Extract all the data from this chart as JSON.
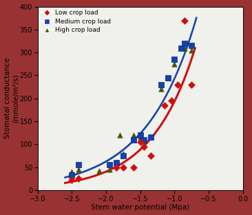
{
  "title": "",
  "xlabel": "Stem water potential (Mpa)",
  "ylabel": "Stomatal conductance\n(mmole/m²/s)",
  "xlim": [
    -3,
    0
  ],
  "ylim": [
    0,
    400
  ],
  "xticks": [
    -3,
    -2.5,
    -2,
    -1.5,
    -1,
    -0.5,
    0
  ],
  "yticks": [
    0,
    50,
    100,
    150,
    200,
    250,
    300,
    350,
    400
  ],
  "low_x": [
    -2.5,
    -2.4,
    -1.85,
    -1.75,
    -1.6,
    -1.5,
    -1.45,
    -1.35,
    -1.15,
    -1.05,
    -0.95,
    -0.85,
    -0.75
  ],
  "low_y": [
    22,
    25,
    50,
    50,
    50,
    105,
    95,
    75,
    185,
    195,
    230,
    370,
    230
  ],
  "med_x": [
    -2.5,
    -2.4,
    -1.95,
    -1.85,
    -1.75,
    -1.6,
    -1.5,
    -1.45,
    -1.35,
    -1.2,
    -1.1,
    -1.0,
    -0.9,
    -0.85,
    -0.75
  ],
  "med_y": [
    33,
    55,
    55,
    60,
    75,
    110,
    120,
    110,
    115,
    230,
    245,
    285,
    310,
    320,
    315
  ],
  "high_x": [
    -2.5,
    -2.4,
    -2.1,
    -1.95,
    -1.8,
    -1.75,
    -1.6,
    -1.5,
    -1.45,
    -1.2,
    -1.1,
    -1.0,
    -0.85,
    -0.75
  ],
  "high_y": [
    40,
    45,
    42,
    45,
    120,
    80,
    120,
    115,
    100,
    220,
    245,
    275,
    310,
    305
  ],
  "low_color": "#cc1111",
  "med_color": "#1144aa",
  "high_color": "#4a5500",
  "curve_high_color": "#9999bb",
  "bg_color": "#f0f0ec",
  "border_color": "#993333",
  "legend_labels": [
    "Low crop load",
    "Medium crop load",
    "High crop load"
  ],
  "fig_width": 3.66,
  "fig_height": 3.12,
  "dpi": 100
}
